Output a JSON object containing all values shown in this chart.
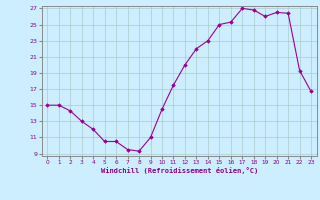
{
  "x": [
    0,
    1,
    2,
    3,
    4,
    5,
    6,
    7,
    8,
    9,
    10,
    11,
    12,
    13,
    14,
    15,
    16,
    17,
    18,
    19,
    20,
    21,
    22,
    23
  ],
  "y": [
    15,
    15,
    14.3,
    13,
    12,
    10.5,
    10.5,
    9.5,
    9.3,
    11,
    14.5,
    17.5,
    20,
    22,
    23,
    25,
    25.3,
    27,
    26.8,
    26,
    26.5,
    26.4,
    19.3,
    16.7
  ],
  "line_color": "#990099",
  "marker": "D",
  "marker_size": 1.8,
  "bg_color": "#cceeff",
  "grid_color": "#aacccc",
  "xlabel": "Windchill (Refroidissement éolien,°C)",
  "ylim": [
    9,
    27
  ],
  "xlim": [
    -0.5,
    23.5
  ],
  "yticks": [
    9,
    11,
    13,
    15,
    17,
    19,
    21,
    23,
    25,
    27
  ],
  "xticks": [
    0,
    1,
    2,
    3,
    4,
    5,
    6,
    7,
    8,
    9,
    10,
    11,
    12,
    13,
    14,
    15,
    16,
    17,
    18,
    19,
    20,
    21,
    22,
    23
  ],
  "tick_color": "#880088",
  "label_color": "#880088",
  "spine_color": "#888888"
}
